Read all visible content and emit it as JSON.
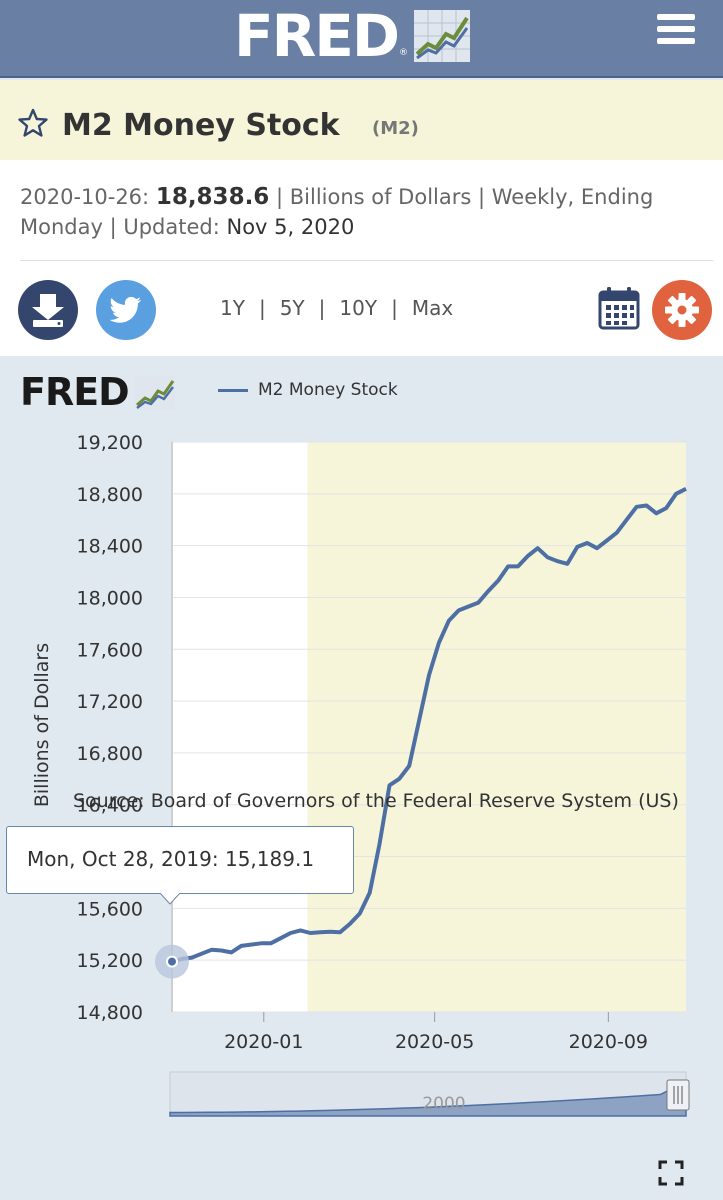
{
  "header": {
    "logo": "FRED",
    "logo_mark": "®"
  },
  "series": {
    "title": "M2 Money Stock",
    "code": "(M2)"
  },
  "meta": {
    "date": "2020-10-26:",
    "value": "18,838.6",
    "units_freq_1": "| Billions of Dollars | Weekly,",
    "units_freq_2": "Ending Monday | Updated:",
    "updated": "Nov 5, 2020"
  },
  "toolbar": {
    "ranges": [
      "1Y",
      "5Y",
      "10Y",
      "Max"
    ]
  },
  "chart_logo": "FRED",
  "chart_data": {
    "type": "line",
    "legend": "M2 Money Stock",
    "ylabel": "Billions of Dollars",
    "ylim": [
      14800,
      19200
    ],
    "yticks": [
      "19,200",
      "18,800",
      "18,400",
      "18,000",
      "17,600",
      "17,200",
      "16,800",
      "16,400",
      "16,000",
      "15,600",
      "15,200",
      "14,800"
    ],
    "xticks": [
      "2020-01",
      "2020-05",
      "2020-09"
    ],
    "recession_shading": [
      "2020-02",
      "2020-10-26"
    ],
    "series": [
      {
        "name": "M2 Money Stock",
        "x": [
          "2019-10-28",
          "2019-11-04",
          "2019-11-11",
          "2019-11-18",
          "2019-11-25",
          "2019-12-02",
          "2019-12-09",
          "2019-12-16",
          "2019-12-23",
          "2019-12-30",
          "2020-01-06",
          "2020-01-13",
          "2020-01-20",
          "2020-01-27",
          "2020-02-03",
          "2020-02-10",
          "2020-02-17",
          "2020-02-24",
          "2020-03-02",
          "2020-03-09",
          "2020-03-16",
          "2020-03-23",
          "2020-03-30",
          "2020-04-06",
          "2020-04-13",
          "2020-04-20",
          "2020-04-27",
          "2020-05-04",
          "2020-05-11",
          "2020-05-18",
          "2020-05-25",
          "2020-06-01",
          "2020-06-08",
          "2020-06-15",
          "2020-06-22",
          "2020-06-29",
          "2020-07-06",
          "2020-07-13",
          "2020-07-20",
          "2020-07-27",
          "2020-08-03",
          "2020-08-10",
          "2020-08-17",
          "2020-08-24",
          "2020-08-31",
          "2020-09-07",
          "2020-09-14",
          "2020-09-21",
          "2020-09-28",
          "2020-10-05",
          "2020-10-12",
          "2020-10-19",
          "2020-10-26"
        ],
        "values": [
          15189.1,
          15210,
          15220,
          15250,
          15280,
          15275,
          15260,
          15310,
          15320,
          15330,
          15330,
          15370,
          15410,
          15430,
          15410,
          15415,
          15420,
          15415,
          15480,
          15560,
          15720,
          16100,
          16550,
          16600,
          16700,
          17050,
          17400,
          17650,
          17820,
          17900,
          17930,
          17960,
          18050,
          18130,
          18240,
          18240,
          18320,
          18380,
          18310,
          18280,
          18260,
          18390,
          18420,
          18380,
          18440,
          18500,
          18600,
          18700,
          18710,
          18650,
          18690,
          18800,
          18838.6
        ]
      }
    ],
    "tooltip": {
      "date": "Mon, Oct 28, 2019:",
      "value": "15,189.1"
    },
    "navigator_label": "2000"
  },
  "source": "Source: Board of Governors of the Federal Reserve System (US)",
  "colors": {
    "header": "#6a7fa4",
    "line": "#4e6fa3",
    "recession": "#f6f5da",
    "gear": "#e0623f",
    "twitter": "#5a9fe0",
    "download": "#34466e"
  },
  "icons": {
    "star": "star-outline-icon",
    "download": "download-icon",
    "twitter": "twitter-bird-icon",
    "calendar": "calendar-icon",
    "gear": "gear-icon",
    "menu": "hamburger-menu-icon",
    "fullscreen": "fullscreen-icon"
  }
}
